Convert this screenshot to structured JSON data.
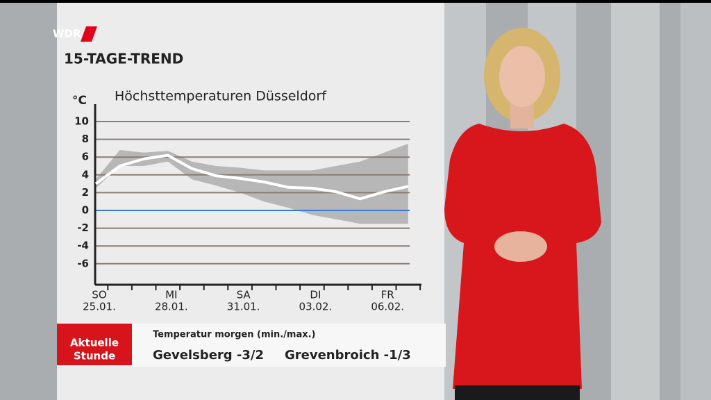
{
  "logo": "WDR",
  "heading": "15-TAGE-TREND",
  "chart_data": {
    "type": "line",
    "title": "Höchsttemperaturen Düsseldorf",
    "y_label": "°C",
    "categories": [
      "25.01.",
      null,
      null,
      "28.01.",
      null,
      null,
      "31.01.",
      null,
      null,
      "03.02.",
      null,
      null,
      "06.02.",
      null
    ],
    "weekdays": [
      "SO",
      null,
      null,
      "MI",
      null,
      null,
      "SA",
      null,
      null,
      "DI",
      null,
      null,
      "FR",
      null
    ],
    "values": [
      3.0,
      5.0,
      5.8,
      6.2,
      4.7,
      3.9,
      3.6,
      3.2,
      2.6,
      2.5,
      2.1,
      1.3,
      2.1,
      2.7
    ],
    "color": "#ffffff",
    "band": {
      "upper": [
        3.5,
        6.8,
        6.5,
        6.7,
        5.5,
        5.0,
        4.8,
        4.5,
        4.5,
        4.5,
        5.0,
        5.5,
        6.5,
        7.5
      ],
      "lower": [
        2.5,
        5.0,
        5.0,
        5.5,
        3.5,
        2.8,
        2.0,
        1.0,
        0.3,
        -0.5,
        -1.0,
        -1.5,
        -1.5,
        -1.5
      ],
      "color": "#8d8d8d"
    },
    "ylim": [
      -8,
      12
    ],
    "yticks": [
      10,
      8,
      6,
      4,
      2,
      0,
      -2,
      -4,
      -6
    ],
    "grid": true,
    "grid_color": "#8a7b74",
    "zero_line_color": "#3a78d8"
  },
  "ticker": {
    "badge": [
      "Aktuelle",
      "Stunde"
    ],
    "label": "Temperatur morgen (min./max.)",
    "items": [
      "Gevelsberg -3/2",
      "Grevenbroich -1/3"
    ]
  }
}
